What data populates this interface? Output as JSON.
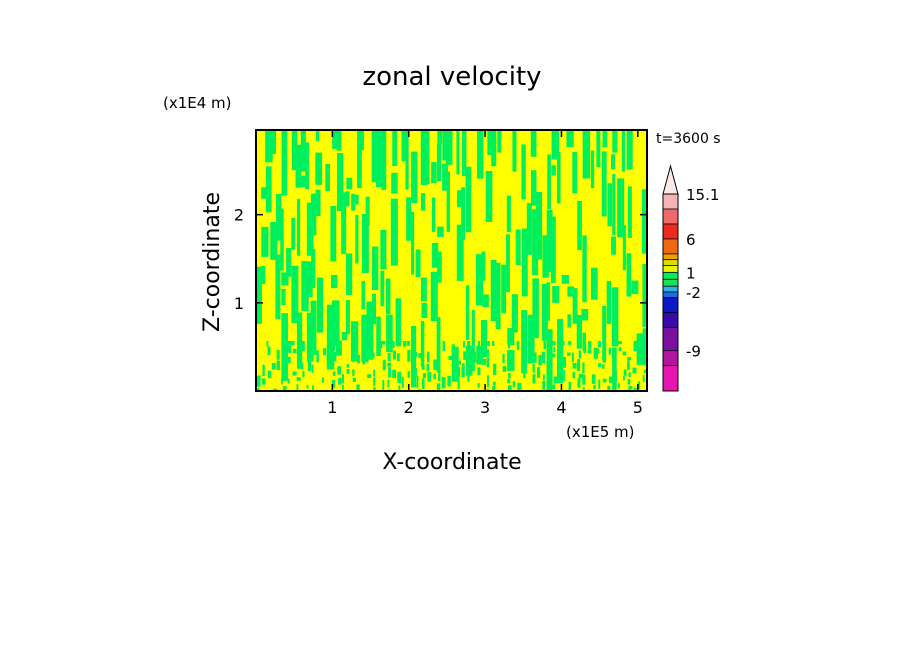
{
  "chart_data": {
    "type": "heatmap",
    "title": "zonal velocity",
    "xlabel": "X-coordinate",
    "ylabel": "Z-coordinate",
    "x_unit": "(x1E5 m)",
    "y_unit": "(x1E4 m)",
    "time_label": "t=3600 s",
    "xlim": [
      0,
      5.12
    ],
    "ylim": [
      0,
      2.96
    ],
    "x_ticks": [
      1,
      2,
      3,
      4,
      5
    ],
    "y_ticks": [
      1,
      2
    ],
    "colorbar": {
      "levels": [
        -15,
        -12,
        -9,
        -7,
        -5,
        -3,
        -2,
        -1,
        0,
        1,
        2,
        3,
        4,
        6,
        8,
        11,
        15.1
      ],
      "colors": [
        "#e616b0",
        "#b2169e",
        "#7a10a0",
        "#3a0aa8",
        "#0a18c8",
        "#1a6ee0",
        "#2ab4e6",
        "#1ede5a",
        "#00ef5c",
        "#ecf500",
        "#d8e000",
        "#f0a000",
        "#ee6a10",
        "#ec2a1e",
        "#f06a6a",
        "#f4b4b4"
      ],
      "labeled_levels": [
        "15.1",
        "6",
        "1",
        "-2",
        "-9"
      ],
      "extend": "max",
      "extend_color": "#fce8e8"
    },
    "field": {
      "dominant_values": [
        "0 to 1",
        "1 to 2"
      ],
      "colors": {
        "negative_weak": "#00ef5c",
        "positive_weak": "#ffff00"
      }
    }
  }
}
